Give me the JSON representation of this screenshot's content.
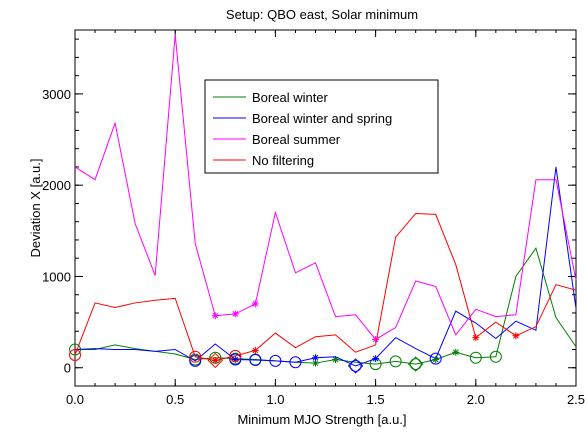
{
  "chart_data": {
    "type": "line",
    "title": "Setup: QBO east, Solar minimum",
    "xlabel": "Minimum MJO Strength [a.u.]",
    "ylabel": "Deviation X [a.u.]",
    "xlim": [
      0,
      2.5
    ],
    "ylim": [
      -200,
      3700
    ],
    "xticks": [
      0,
      0.5,
      1.0,
      1.5,
      2.0,
      2.5
    ],
    "xtick_labels": [
      "0.0",
      "0.5",
      "1.0",
      "1.5",
      "2.0",
      "2.5"
    ],
    "yticks": [
      0,
      1000,
      2000,
      3000
    ],
    "ytick_labels": [
      "0",
      "1000",
      "2000",
      "3000"
    ],
    "grid": false,
    "legend_position": "top-center",
    "x": [
      0,
      0.1,
      0.2,
      0.3,
      0.4,
      0.5,
      0.6,
      0.7,
      0.8,
      0.9,
      1.0,
      1.1,
      1.2,
      1.3,
      1.4,
      1.5,
      1.6,
      1.7,
      1.8,
      1.9,
      2.0,
      2.1,
      2.2,
      2.3,
      2.4,
      2.5
    ],
    "series": [
      {
        "name": "Boreal winter",
        "color": "#008000",
        "values": [
          200,
          200,
          250,
          210,
          180,
          150,
          90,
          110,
          100,
          90,
          75,
          60,
          50,
          90,
          60,
          40,
          70,
          40,
          90,
          170,
          110,
          120,
          1000,
          1310,
          550,
          230
        ],
        "circle_markers": [
          0,
          6,
          7,
          8,
          9,
          15,
          16,
          17,
          20,
          21
        ],
        "star_markers": [
          12,
          13,
          18,
          19
        ],
        "diamond_markers": [
          17
        ]
      },
      {
        "name": "Boreal winter and spring",
        "color": "#0000ff",
        "values": [
          200,
          210,
          200,
          200,
          180,
          200,
          75,
          260,
          90,
          85,
          75,
          60,
          110,
          120,
          20,
          100,
          330,
          210,
          100,
          620,
          490,
          320,
          510,
          410,
          2200,
          650
        ],
        "circle_markers": [
          6,
          8,
          9,
          10,
          11,
          14,
          18
        ],
        "star_markers": [
          8,
          12,
          15
        ],
        "diamond_markers": [
          14
        ]
      },
      {
        "name": "Boreal summer",
        "color": "#ff00ff",
        "values": [
          2200,
          2060,
          2680,
          1580,
          1010,
          3650,
          1360,
          570,
          590,
          700,
          1700,
          1040,
          1150,
          560,
          580,
          310,
          440,
          950,
          890,
          360,
          640,
          560,
          580,
          2060,
          2060,
          960
        ],
        "circle_markers": [],
        "star_markers": [
          7,
          8,
          9,
          15
        ],
        "diamond_markers": []
      },
      {
        "name": "No filtering",
        "color": "#ff0000",
        "values": [
          140,
          710,
          660,
          710,
          740,
          760,
          120,
          80,
          130,
          190,
          380,
          220,
          340,
          360,
          170,
          250,
          1430,
          1690,
          1680,
          1130,
          330,
          500,
          350,
          450,
          910,
          850
        ],
        "circle_markers": [
          0,
          6,
          8
        ],
        "star_markers": [
          7,
          9,
          20,
          22
        ],
        "diamond_markers": [
          7
        ]
      }
    ]
  }
}
